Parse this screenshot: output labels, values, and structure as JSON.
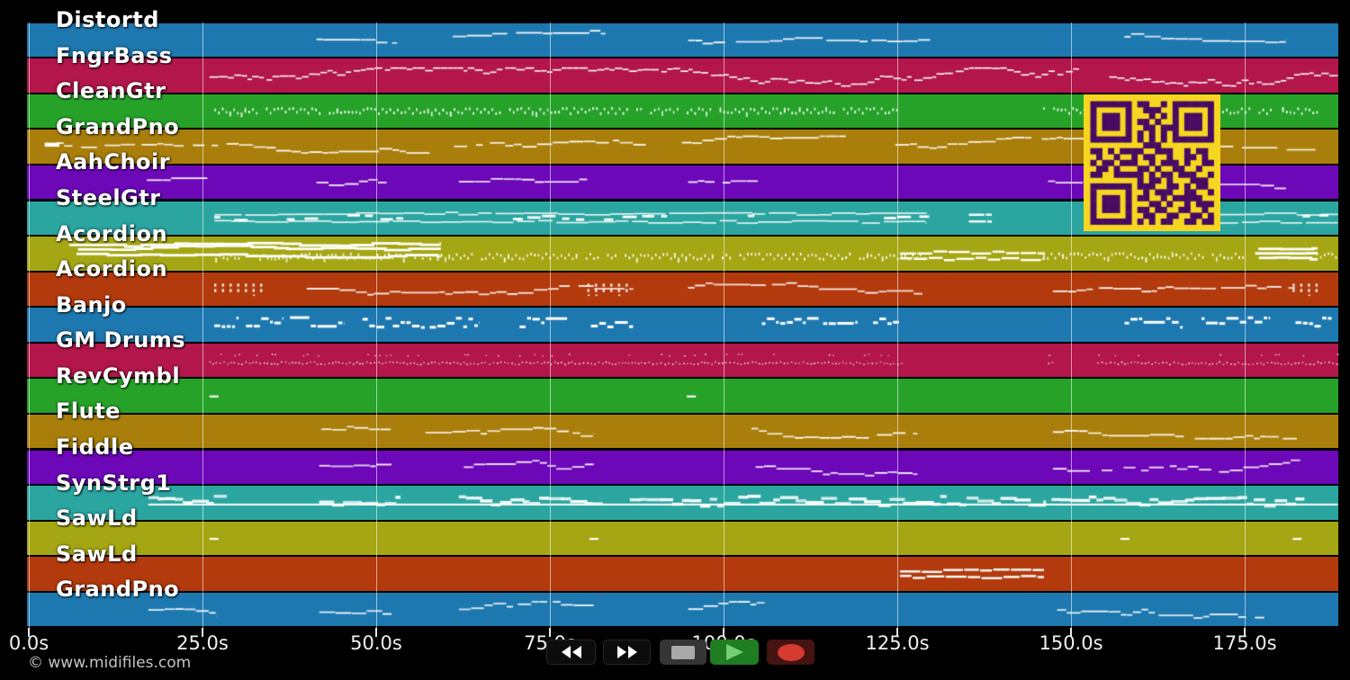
{
  "app": {
    "watermark": "© www.midifiles.com",
    "background_color": "#000000",
    "gridline_color": "rgba(255,255,255,0.55)",
    "note_color": "#ffffff",
    "label_color": "#ffffff"
  },
  "timeline": {
    "unit": "seconds",
    "tick_interval_s": 25,
    "duration_s": 188.4,
    "ticks": [
      {
        "t": 0,
        "label": "0.0s"
      },
      {
        "t": 25,
        "label": "25.0s"
      },
      {
        "t": 50,
        "label": "50.0s"
      },
      {
        "t": 75,
        "label": "75.0s"
      },
      {
        "t": 100,
        "label": "100.0s"
      },
      {
        "t": 125,
        "label": "125.0s"
      },
      {
        "t": 150,
        "label": "150.0s"
      },
      {
        "t": 175,
        "label": "175.0s"
      }
    ]
  },
  "render_seed": 20240613,
  "tracks": [
    {
      "name": "Distortd",
      "color": "#1e78b0",
      "phrases": [
        [
          41.4,
          53,
          "melody",
          0.42
        ],
        [
          61,
          83,
          "melody",
          0.45
        ],
        [
          94.9,
          130,
          "melody",
          0.5
        ],
        [
          157.7,
          181,
          "melody",
          0.45
        ]
      ]
    },
    {
      "name": "FngrBass",
      "color": "#b2164a",
      "phrases": [
        [
          26,
          151.2,
          "walk",
          0.55
        ],
        [
          155.5,
          188.4,
          "walk",
          0.55
        ]
      ]
    },
    {
      "name": "CleanGtr",
      "color": "#26a228",
      "phrases": [
        [
          26.7,
          125.3,
          "ticks",
          0.5
        ],
        [
          146,
          179,
          "ticks",
          0.5
        ],
        [
          180.4,
          185.3,
          "ticks",
          0.5
        ]
      ]
    },
    {
      "name": "GrandPno",
      "color": "#a97e0b",
      "phrases": [
        [
          2.3,
          4.4,
          "thickdash",
          0.4
        ],
        [
          4,
          57.7,
          "melody",
          0.42
        ],
        [
          61.2,
          88.8,
          "melody",
          0.45
        ],
        [
          94,
          117.6,
          "melody",
          0.4
        ],
        [
          124.7,
          151.9,
          "melody",
          0.45
        ],
        [
          171.3,
          185.2,
          "melody",
          0.42
        ]
      ]
    },
    {
      "name": "AahChoir",
      "color": "#6c08b8",
      "phrases": [
        [
          17,
          26,
          "melody",
          0.5
        ],
        [
          41.4,
          51.5,
          "melody",
          0.5
        ],
        [
          61.9,
          81.3,
          "melody",
          0.5
        ],
        [
          94.9,
          105.3,
          "melody",
          0.5
        ],
        [
          146.7,
          151.8,
          "melody",
          0.5
        ],
        [
          171.3,
          181,
          "melody",
          0.5
        ]
      ]
    },
    {
      "name": "SteelGtr",
      "color": "#2ba5a0",
      "phrases": [
        [
          26.7,
          129.2,
          "chords",
          0.5
        ],
        [
          135.3,
          138.6,
          "chords2",
          0.5
        ],
        [
          171.3,
          188.4,
          "chords",
          0.5
        ]
      ]
    },
    {
      "name": "Acordion",
      "color": "#a5a613",
      "phrases": [
        [
          5.8,
          59.3,
          "cluster",
          0.35
        ],
        [
          26.3,
          129,
          "ticks",
          0.62
        ],
        [
          125.4,
          146.2,
          "chords2",
          0.55
        ],
        [
          146,
          175.8,
          "ticks",
          0.6
        ],
        [
          176,
          185.5,
          "cluster",
          0.5
        ],
        [
          185.3,
          188.4,
          "ticks",
          0.6
        ]
      ]
    },
    {
      "name": "Acordion",
      "color": "#b23a0d",
      "phrases": [
        [
          26.7,
          33.5,
          "exclaim",
          0.45
        ],
        [
          40,
          87,
          "melody",
          0.5
        ],
        [
          80.4,
          87,
          "exclaim",
          0.45
        ],
        [
          94.9,
          128.6,
          "melody",
          0.5
        ],
        [
          147.4,
          182.3,
          "melody",
          0.5
        ],
        [
          181.9,
          186.2,
          "exclaim",
          0.45
        ]
      ]
    },
    {
      "name": "Banjo",
      "color": "#1e78b0",
      "phrases": [
        [
          26.7,
          87.2,
          "blocks",
          0.4
        ],
        [
          105.5,
          125.3,
          "blocks",
          0.4
        ],
        [
          157.7,
          179.1,
          "blocks",
          0.4
        ],
        [
          182.3,
          188.4,
          "blocks",
          0.4
        ]
      ]
    },
    {
      "name": "GM Drums",
      "color": "#b2164a",
      "phrases": [
        [
          26,
          126,
          "dots",
          0.5
        ],
        [
          146.7,
          147.6,
          "dots",
          0.5
        ],
        [
          153.8,
          188.4,
          "dots",
          0.5
        ]
      ]
    },
    {
      "name": "RevCymbl",
      "color": "#26a228",
      "phrases": [
        [
          26,
          27.3,
          "dash",
          0.5
        ],
        [
          94.7,
          96,
          "dash",
          0.5
        ]
      ]
    },
    {
      "name": "Flute",
      "color": "#a97e0b",
      "phrases": [
        [
          42.1,
          52.1,
          "melody",
          0.42
        ],
        [
          57.1,
          81.3,
          "melody",
          0.45
        ],
        [
          104,
          127.9,
          "melody",
          0.42
        ],
        [
          147.4,
          183,
          "melody",
          0.45
        ]
      ]
    },
    {
      "name": "Fiddle",
      "color": "#6c08b8",
      "phrases": [
        [
          41.8,
          52.2,
          "melody",
          0.5
        ],
        [
          62.6,
          81.3,
          "melody",
          0.5
        ],
        [
          104.6,
          127.9,
          "melody",
          0.5
        ],
        [
          147.4,
          183,
          "melody",
          0.5
        ]
      ]
    },
    {
      "name": "SynStrg1",
      "color": "#2ba5a0",
      "phrases": [
        [
          17.2,
          188.4,
          "pad",
          0.55
        ],
        [
          17.2,
          28.5,
          "padblocks",
          0.45
        ],
        [
          41.8,
          53.5,
          "padblocks",
          0.45
        ],
        [
          61.9,
          82.6,
          "padblocks",
          0.45
        ],
        [
          86.5,
          146.4,
          "padblocks",
          0.45
        ],
        [
          147.2,
          183.6,
          "padblocks",
          0.45
        ]
      ]
    },
    {
      "name": "SawLd",
      "color": "#a5a613",
      "phrases": [
        [
          26,
          27.3,
          "dash",
          0.5
        ],
        [
          80.7,
          82,
          "dash",
          0.5
        ],
        [
          157.1,
          158.4,
          "dash",
          0.5
        ],
        [
          181.9,
          183.2,
          "dash",
          0.5
        ]
      ]
    },
    {
      "name": "SawLd",
      "color": "#b23a0d",
      "phrases": [
        [
          125.4,
          146.1,
          "chords2",
          0.45
        ]
      ]
    },
    {
      "name": "GrandPno",
      "color": "#1e78b0",
      "phrases": [
        [
          17.2,
          27,
          "melody",
          0.5
        ],
        [
          41.8,
          52.2,
          "melody",
          0.5
        ],
        [
          61.9,
          81.3,
          "melody",
          0.5
        ],
        [
          94.9,
          105.9,
          "melody",
          0.5
        ],
        [
          148,
          177.8,
          "melody",
          0.5
        ]
      ]
    }
  ],
  "transport": {
    "buttons": [
      "rewind",
      "fast-forward",
      "stop",
      "play",
      "record"
    ],
    "button_bg": "#0c0c0c",
    "stop_bg": "#353535",
    "stop_glyph": "#a9a9a9",
    "play_bg": "#1f7d22",
    "play_glyph": "#74cf74",
    "record_bg": "#451312",
    "record_glyph": "#d43a30",
    "arrow_glyph": "#ffffff"
  },
  "qr": {
    "bg": "#f6d620",
    "fg": "#470b63",
    "modules": [
      "111111101100101111111",
      "100000100111001000001",
      "101110100010101011101",
      "101110101101001011101",
      "101110100110111011101",
      "100000101010101000001",
      "111111101010101111111",
      "000000000111000000000",
      "110101111001110010110",
      "010010010110010011010",
      "101101110010111010011",
      "011010001101001100100",
      "110011111010110111001",
      "000000001011010001110",
      "111111101110011010110",
      "100000100101110011001",
      "101110101100101111100",
      "101110100011010010111",
      "101110101101100110010",
      "100000100110011001101",
      "111111101010110011011"
    ]
  }
}
